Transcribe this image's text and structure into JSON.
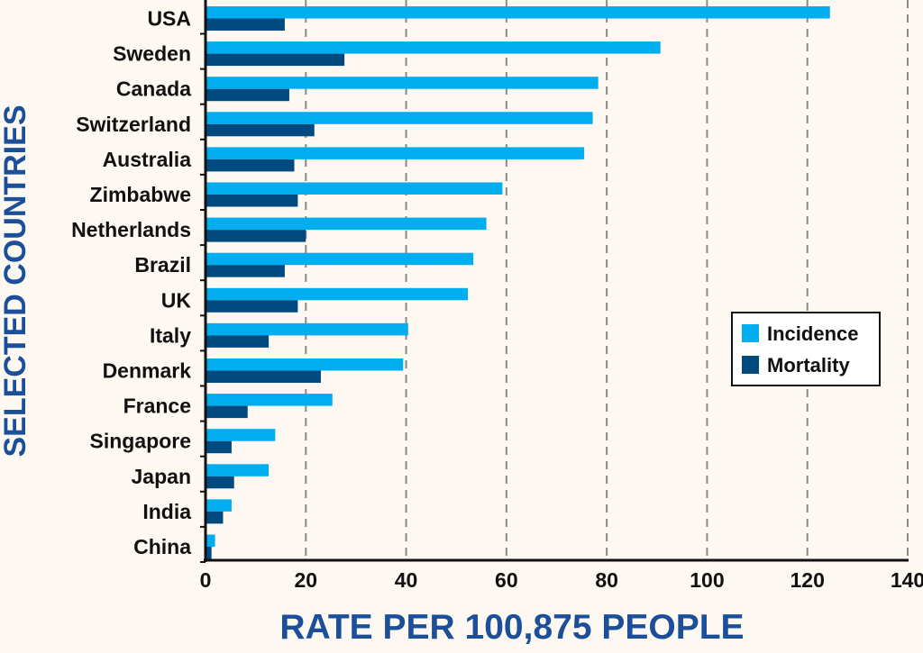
{
  "chart_data": {
    "type": "bar",
    "orientation": "horizontal",
    "title": "",
    "xlabel": "RATE PER 100,875 PEOPLE",
    "ylabel": "SELECTED COUNTRIES",
    "xlim": [
      0,
      140
    ],
    "xticks": [
      "0",
      "20",
      "40",
      "60",
      "80",
      "100",
      "120",
      "140"
    ],
    "grid": "vertical dashed",
    "legend_position": "right-middle",
    "categories": [
      "USA",
      "Sweden",
      "Canada",
      "Switzerland",
      "Australia",
      "Zimbabwe",
      "Netherlands",
      "Brazil",
      "UK",
      "Italy",
      "Denmark",
      "France",
      "Singapore",
      "Japan",
      "India",
      "China"
    ],
    "series": [
      {
        "name": "Incidence",
        "color": "#00aeef",
        "values": [
          124.5,
          90.7,
          78.3,
          77.2,
          75.5,
          59.2,
          56,
          53.4,
          52.3,
          40.4,
          39.4,
          25.3,
          13.9,
          12.6,
          5.2,
          1.9
        ]
      },
      {
        "name": "Mortality",
        "color": "#004a80",
        "values": [
          15.8,
          27.7,
          16.7,
          21.7,
          17.7,
          18.4,
          20,
          15.8,
          18.4,
          12.6,
          23,
          8.4,
          5.2,
          5.7,
          3.5,
          1.2
        ]
      }
    ]
  }
}
